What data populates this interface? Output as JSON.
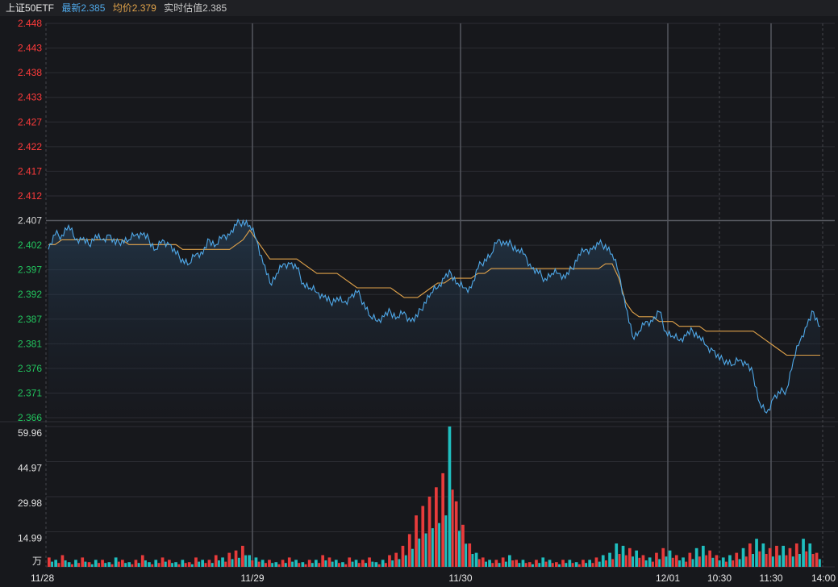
{
  "header": {
    "title": "上证50ETF",
    "latest": "最新2.385",
    "avg": "均价2.379",
    "estimate": "实时估值2.385"
  },
  "colors": {
    "background": "#17181c",
    "header_bg": "#1f2024",
    "grid": "#2c2d33",
    "price_line": "#4fa8e8",
    "avg_line": "#e0a24a",
    "up": "#e83b3b",
    "down": "#1fbfbf",
    "rise_label": "#ff3b3b",
    "fall_label": "#22c55e",
    "title_text": "#e8e8e8",
    "latest_text": "#4fa8e8",
    "avg_text": "#e0a24a",
    "estimate_text": "#c8c8c8"
  },
  "chart_data": [
    {
      "type": "line",
      "name": "price",
      "ylim": [
        2.366,
        2.448
      ],
      "yticks": [
        "2.448",
        "2.443",
        "2.438",
        "2.433",
        "2.427",
        "2.422",
        "2.417",
        "2.412",
        "2.407",
        "2.402",
        "2.397",
        "2.392",
        "2.387",
        "2.381",
        "2.376",
        "2.371",
        "2.366"
      ],
      "prev_close": 2.407,
      "x_labels": [
        "11/28",
        "11/29",
        "11/30",
        "12/01",
        "10:30",
        "11:30",
        "14:00"
      ],
      "series": [
        {
          "role": "price",
          "values": [
            2.401,
            2.404,
            2.404,
            2.406,
            2.403,
            2.403,
            2.402,
            2.404,
            2.403,
            2.404,
            2.402,
            2.403,
            2.403,
            2.404,
            2.404,
            2.403,
            2.401,
            2.403,
            2.402,
            2.4,
            2.399,
            2.398,
            2.4,
            2.4,
            2.403,
            2.402,
            2.404,
            2.404,
            2.406,
            2.407,
            2.406,
            2.403,
            2.398,
            2.394,
            2.396,
            2.398,
            2.398,
            2.397,
            2.394,
            2.393,
            2.392,
            2.391,
            2.39,
            2.391,
            2.39,
            2.391,
            2.392,
            2.39,
            2.387,
            2.386,
            2.387,
            2.388,
            2.387,
            2.388,
            2.386,
            2.387,
            2.39,
            2.392,
            2.393,
            2.395,
            2.396,
            2.394,
            2.393,
            2.393,
            2.397,
            2.399,
            2.4,
            2.403,
            2.402,
            2.402,
            2.401,
            2.4,
            2.397,
            2.396,
            2.395,
            2.396,
            2.396,
            2.395,
            2.397,
            2.4,
            2.401,
            2.401,
            2.402,
            2.402,
            2.4,
            2.396,
            2.389,
            2.383,
            2.384,
            2.386,
            2.386,
            2.388,
            2.384,
            2.383,
            2.382,
            2.383,
            2.384,
            2.383,
            2.381,
            2.38,
            2.378,
            2.378,
            2.377,
            2.378,
            2.377,
            2.375,
            2.369,
            2.367,
            2.37,
            2.371,
            2.372,
            2.378,
            2.382,
            2.385,
            2.388,
            2.385
          ],
          "note_unused": null
        },
        {
          "role": "avg",
          "values": [
            2.402,
            2.402,
            2.403,
            2.403,
            2.403,
            2.403,
            2.403,
            2.403,
            2.403,
            2.403,
            2.403,
            2.403,
            2.402,
            2.402,
            2.402,
            2.402,
            2.402,
            2.402,
            2.402,
            2.402,
            2.401,
            2.401,
            2.401,
            2.401,
            2.401,
            2.401,
            2.401,
            2.401,
            2.402,
            2.403,
            2.405,
            2.403,
            2.401,
            2.399,
            2.399,
            2.399,
            2.399,
            2.399,
            2.398,
            2.397,
            2.396,
            2.396,
            2.396,
            2.396,
            2.395,
            2.394,
            2.393,
            2.393,
            2.393,
            2.393,
            2.393,
            2.393,
            2.392,
            2.391,
            2.391,
            2.391,
            2.392,
            2.393,
            2.394,
            2.394,
            2.395,
            2.395,
            2.395,
            2.395,
            2.396,
            2.396,
            2.397,
            2.397,
            2.397,
            2.397,
            2.397,
            2.397,
            2.397,
            2.397,
            2.397,
            2.397,
            2.397,
            2.397,
            2.397,
            2.397,
            2.397,
            2.397,
            2.397,
            2.398,
            2.398,
            2.395,
            2.39,
            2.388,
            2.387,
            2.387,
            2.387,
            2.386,
            2.386,
            2.386,
            2.385,
            2.385,
            2.385,
            2.385,
            2.384,
            2.384,
            2.384,
            2.384,
            2.384,
            2.384,
            2.384,
            2.384,
            2.383,
            2.382,
            2.381,
            2.38,
            2.379,
            2.379,
            2.379,
            2.379,
            2.379,
            2.379
          ]
        }
      ]
    },
    {
      "type": "bar",
      "name": "volume",
      "ylim": [
        0,
        59.96
      ],
      "yticks": [
        "59.96",
        "44.97",
        "29.98",
        "14.99"
      ],
      "unit": "万",
      "values": [
        4,
        3,
        5,
        2,
        3,
        4,
        2,
        3,
        3,
        2,
        4,
        3,
        2,
        3,
        5,
        2,
        3,
        4,
        3,
        2,
        3,
        2,
        4,
        3,
        3,
        5,
        4,
        6,
        7,
        9,
        5,
        4,
        3,
        3,
        2,
        3,
        4,
        3,
        2,
        3,
        3,
        5,
        4,
        3,
        2,
        4,
        3,
        3,
        4,
        2,
        3,
        5,
        6,
        9,
        14,
        22,
        26,
        30,
        34,
        40,
        60,
        28,
        18,
        10,
        6,
        4,
        3,
        3,
        4,
        5,
        3,
        3,
        2,
        3,
        4,
        3,
        2,
        3,
        3,
        2,
        3,
        3,
        4,
        5,
        6,
        10,
        9,
        8,
        7,
        5,
        4,
        6,
        8,
        7,
        5,
        4,
        6,
        8,
        9,
        7,
        5,
        4,
        5,
        6,
        8,
        10,
        12,
        10,
        8,
        9,
        9,
        8,
        10,
        12,
        10,
        6
      ],
      "ups": [
        1,
        0,
        1,
        0,
        0,
        1,
        1,
        0,
        1,
        0,
        0,
        1,
        0,
        1,
        1,
        0,
        0,
        1,
        1,
        0,
        0,
        1,
        1,
        0,
        1,
        1,
        0,
        1,
        1,
        1,
        0,
        0,
        0,
        1,
        0,
        1,
        1,
        0,
        0,
        1,
        0,
        1,
        1,
        0,
        0,
        1,
        0,
        1,
        1,
        0,
        0,
        1,
        1,
        1,
        1,
        1,
        1,
        1,
        1,
        1,
        0,
        1,
        1,
        1,
        0,
        1,
        0,
        1,
        1,
        0,
        1,
        0,
        1,
        1,
        0,
        0,
        1,
        1,
        0,
        0,
        1,
        0,
        1,
        0,
        0,
        0,
        0,
        1,
        0,
        1,
        0,
        1,
        1,
        0,
        1,
        0,
        1,
        0,
        0,
        1,
        1,
        0,
        0,
        1,
        0,
        1,
        0,
        0,
        1,
        1,
        0,
        1,
        1,
        0,
        0,
        1
      ]
    }
  ]
}
